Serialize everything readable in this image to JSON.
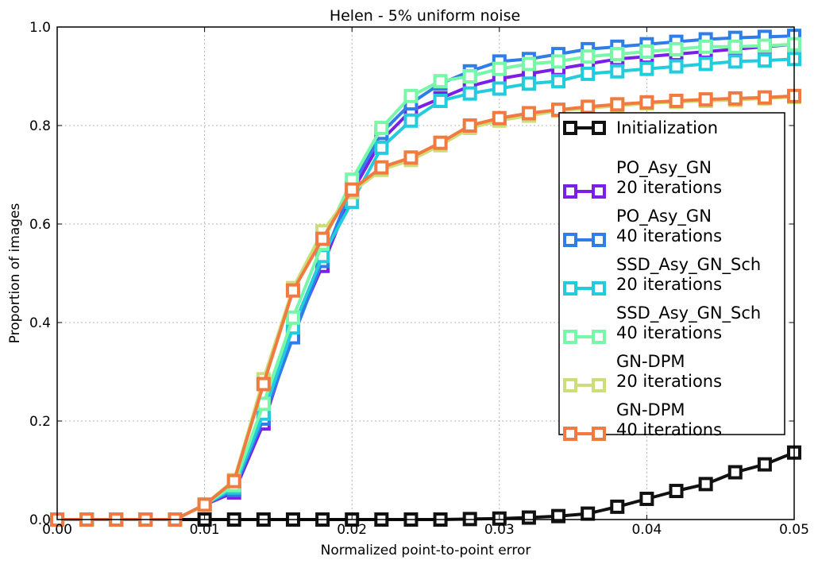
{
  "chart_data": {
    "type": "line",
    "title": "Helen - 5% uniform noise",
    "xlabel": "Normalized point-to-point error",
    "ylabel": "Proportion of images",
    "xlim": [
      0,
      0.05
    ],
    "ylim": [
      0,
      1.0
    ],
    "grid": true,
    "legend_position": "right",
    "x_ticks": [
      "0.00",
      "0.01",
      "0.02",
      "0.03",
      "0.04",
      "0.05"
    ],
    "y_ticks": [
      "0.0",
      "0.2",
      "0.4",
      "0.6",
      "0.8",
      "1.0"
    ],
    "x": [
      0,
      0.002,
      0.004,
      0.006,
      0.008,
      0.01,
      0.012,
      0.014,
      0.016,
      0.018,
      0.02,
      0.022,
      0.024,
      0.026,
      0.028,
      0.03,
      0.032,
      0.034,
      0.036,
      0.038,
      0.04,
      0.042,
      0.044,
      0.046,
      0.048,
      0.05
    ],
    "series": [
      {
        "name": "Initialization",
        "legend_lines": [
          "Initialization"
        ],
        "color": "#111111",
        "values": [
          0,
          0,
          0,
          0,
          0,
          0,
          0,
          0,
          0,
          0,
          0,
          0,
          0,
          0,
          0.001,
          0.002,
          0.004,
          0.007,
          0.012,
          0.026,
          0.042,
          0.058,
          0.072,
          0.096,
          0.112,
          0.136
        ]
      },
      {
        "name": "PO_Asy_GN 20 iterations",
        "legend_lines": [
          "PO_Asy_GN",
          "20 iterations"
        ],
        "color": "#7a1fe8",
        "values": [
          0,
          0,
          0,
          0,
          0,
          0.03,
          0.055,
          0.195,
          0.38,
          0.515,
          0.665,
          0.77,
          0.83,
          0.855,
          0.88,
          0.895,
          0.905,
          0.915,
          0.925,
          0.935,
          0.94,
          0.945,
          0.95,
          0.955,
          0.96,
          0.965
        ]
      },
      {
        "name": "PO_Asy_GN 40 iterations",
        "legend_lines": [
          "PO_Asy_GN",
          "40 iterations"
        ],
        "color": "#2f7de8",
        "values": [
          0,
          0,
          0,
          0,
          0,
          0.03,
          0.06,
          0.205,
          0.37,
          0.525,
          0.675,
          0.785,
          0.845,
          0.885,
          0.91,
          0.93,
          0.935,
          0.945,
          0.955,
          0.96,
          0.965,
          0.97,
          0.975,
          0.978,
          0.98,
          0.982
        ]
      },
      {
        "name": "SSD_Asy_GN_Sch 20 iterations",
        "legend_lines": [
          "SSD_Asy_GN_Sch",
          "20 iterations"
        ],
        "color": "#22ccdd",
        "values": [
          0,
          0,
          0,
          0,
          0,
          0.03,
          0.065,
          0.215,
          0.39,
          0.535,
          0.645,
          0.755,
          0.81,
          0.85,
          0.865,
          0.875,
          0.885,
          0.89,
          0.905,
          0.91,
          0.915,
          0.92,
          0.925,
          0.93,
          0.932,
          0.935
        ]
      },
      {
        "name": "SSD_Asy_GN_Sch 40 iterations",
        "legend_lines": [
          "SSD_Asy_GN_Sch",
          "40 iterations"
        ],
        "color": "#77f7a8",
        "values": [
          0,
          0,
          0,
          0,
          0,
          0.03,
          0.07,
          0.235,
          0.41,
          0.56,
          0.69,
          0.795,
          0.86,
          0.89,
          0.9,
          0.915,
          0.925,
          0.93,
          0.94,
          0.945,
          0.95,
          0.955,
          0.96,
          0.96,
          0.962,
          0.965
        ]
      },
      {
        "name": "GN-DPM 20 iterations",
        "legend_lines": [
          "GN-DPM",
          "20 iterations"
        ],
        "color": "#cddd77",
        "values": [
          0,
          0,
          0,
          0,
          0,
          0.03,
          0.08,
          0.285,
          0.47,
          0.585,
          0.665,
          0.71,
          0.73,
          0.76,
          0.795,
          0.81,
          0.82,
          0.83,
          0.835,
          0.84,
          0.845,
          0.848,
          0.85,
          0.852,
          0.855,
          0.858
        ]
      },
      {
        "name": "GN-DPM 40 iterations",
        "legend_lines": [
          "GN-DPM",
          "40 iterations"
        ],
        "color": "#f07a40",
        "values": [
          0,
          0,
          0,
          0,
          0,
          0.03,
          0.078,
          0.275,
          0.465,
          0.57,
          0.67,
          0.715,
          0.735,
          0.765,
          0.8,
          0.815,
          0.825,
          0.832,
          0.838,
          0.843,
          0.847,
          0.85,
          0.853,
          0.855,
          0.857,
          0.86
        ]
      }
    ]
  }
}
